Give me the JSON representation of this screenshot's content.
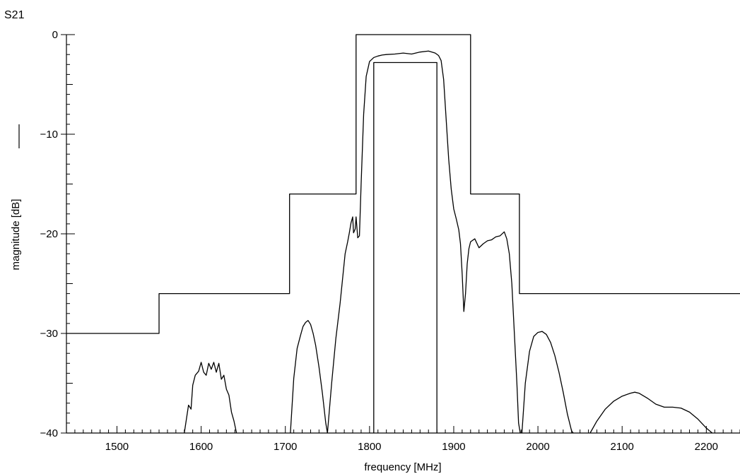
{
  "chart_data": {
    "type": "line",
    "title": "S21",
    "xlabel": "frequency  [MHz]",
    "ylabel": "magnitude  [dB]",
    "xlim": [
      1440,
      2240
    ],
    "ylim": [
      -40,
      0
    ],
    "x_ticks": [
      1500,
      1600,
      1700,
      1800,
      1900,
      2000,
      2100,
      2200
    ],
    "y_ticks": [
      0,
      -10,
      -20,
      -30,
      -40
    ],
    "x_tick_labels": [
      "1500",
      "1600",
      "1700",
      "1800",
      "1900",
      "2000",
      "2100",
      "2200"
    ],
    "y_tick_labels": [
      "0",
      "−10",
      "−20",
      "−30",
      "−40"
    ],
    "grid": false,
    "legend": "none",
    "colors": {
      "line": "#000000",
      "background": "#ffffff"
    },
    "series": [
      {
        "role": "stopband-mask",
        "style": "step",
        "x": [
          1440,
          1550,
          1550,
          1705,
          1705,
          1784,
          1784,
          1920,
          1920,
          1978,
          1978,
          2240
        ],
        "y": [
          -30,
          -30,
          -26,
          -26,
          -16,
          -16,
          0,
          0,
          -16,
          -16,
          -26,
          -26
        ]
      },
      {
        "role": "passband-mask",
        "style": "step",
        "x": [
          1805,
          1805,
          1880,
          1880
        ],
        "y": [
          -40,
          -2.8,
          -2.8,
          -40
        ]
      },
      {
        "role": "response-lobe-1",
        "style": "line",
        "x": [
          1580,
          1585,
          1588,
          1590,
          1593,
          1597,
          1600,
          1603,
          1606,
          1609,
          1612,
          1615,
          1618,
          1621,
          1624,
          1627,
          1630,
          1633,
          1636,
          1639,
          1642
        ],
        "y": [
          -40,
          -37.2,
          -37.6,
          -35.2,
          -34.2,
          -33.8,
          -32.9,
          -33.9,
          -34.2,
          -33.0,
          -33.6,
          -32.9,
          -33.9,
          -33.0,
          -34.6,
          -34.2,
          -35.6,
          -36.2,
          -37.9,
          -38.8,
          -40
        ]
      },
      {
        "role": "response-lobe-2",
        "style": "line",
        "x": [
          1706,
          1710,
          1714,
          1718,
          1721,
          1724,
          1727,
          1730,
          1733,
          1736,
          1740,
          1744,
          1748,
          1750
        ],
        "y": [
          -40,
          -34.5,
          -31.5,
          -30.2,
          -29.3,
          -28.9,
          -28.7,
          -29.1,
          -30.0,
          -31.2,
          -33.4,
          -36.0,
          -39.0,
          -40
        ]
      },
      {
        "role": "response-main",
        "style": "line",
        "x": [
          1750,
          1755,
          1760,
          1765,
          1768,
          1771,
          1774,
          1776,
          1778,
          1780,
          1781,
          1783,
          1784,
          1786,
          1788,
          1790,
          1793,
          1796,
          1800,
          1805,
          1810,
          1815,
          1820,
          1830,
          1840,
          1850,
          1860,
          1870,
          1878,
          1882,
          1885,
          1888,
          1891,
          1894,
          1897,
          1900,
          1903,
          1906,
          1908,
          1910,
          1912,
          1914,
          1916,
          1918,
          1920,
          1925,
          1930,
          1935,
          1940,
          1945,
          1950,
          1955,
          1960,
          1963,
          1966,
          1969,
          1972,
          1975,
          1977,
          1979
        ],
        "y": [
          -40,
          -35.0,
          -30.5,
          -27.0,
          -24.5,
          -22.0,
          -20.8,
          -19.9,
          -18.9,
          -18.3,
          -19.9,
          -19.5,
          -18.3,
          -20.4,
          -20.2,
          -15.0,
          -8.0,
          -4.2,
          -2.7,
          -2.3,
          -2.15,
          -2.05,
          -2.0,
          -1.95,
          -1.85,
          -1.95,
          -1.75,
          -1.65,
          -1.85,
          -2.1,
          -2.6,
          -4.5,
          -8.5,
          -12.5,
          -15.5,
          -17.5,
          -18.5,
          -19.6,
          -21.0,
          -24.0,
          -27.8,
          -26.0,
          -23.0,
          -21.5,
          -20.8,
          -20.5,
          -21.4,
          -21.0,
          -20.7,
          -20.6,
          -20.3,
          -20.2,
          -19.8,
          -20.5,
          -22.0,
          -25.0,
          -30.0,
          -35.0,
          -39.0,
          -40
        ]
      },
      {
        "role": "response-lobe-3",
        "style": "line",
        "x": [
          1981,
          1985,
          1990,
          1995,
          2000,
          2005,
          2010,
          2015,
          2020,
          2025,
          2030,
          2035,
          2040,
          2042
        ],
        "y": [
          -40,
          -35.0,
          -31.8,
          -30.3,
          -29.9,
          -29.8,
          -30.1,
          -30.9,
          -32.2,
          -33.9,
          -35.9,
          -38.1,
          -39.8,
          -40
        ]
      },
      {
        "role": "response-lobe-4",
        "style": "line",
        "x": [
          2062,
          2070,
          2080,
          2090,
          2100,
          2110,
          2115,
          2120,
          2130,
          2140,
          2150,
          2160,
          2170,
          2180,
          2190,
          2200,
          2207
        ],
        "y": [
          -40,
          -38.8,
          -37.6,
          -36.8,
          -36.3,
          -36.0,
          -35.9,
          -36.0,
          -36.5,
          -37.1,
          -37.4,
          -37.4,
          -37.5,
          -37.9,
          -38.6,
          -39.5,
          -40
        ]
      }
    ]
  }
}
